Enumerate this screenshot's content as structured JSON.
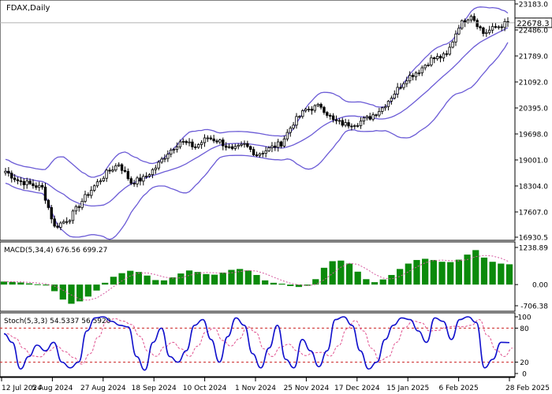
{
  "chart_data": [
    {
      "type": "candlestick",
      "panel": "price",
      "title": "FDAX,Daily",
      "current_value_label": "22678.3",
      "y_ticks": [
        "23183.0",
        "22486.0",
        "21789.0",
        "21092.0",
        "20395.0",
        "19698.0",
        "19001.0",
        "18304.0",
        "17607.0",
        "16930.5"
      ],
      "ylim": [
        16930.5,
        23183.0
      ],
      "overlay": "Bollinger Bands",
      "series_description": "daily OHLC candles Jul 2024 to Feb 2025; approximate close path",
      "close_path": [
        [
          "12 Jul 2024",
          18700
        ],
        [
          "19 Jul 2024",
          18450
        ],
        [
          "26 Jul 2024",
          18350
        ],
        [
          "1 Aug 2024",
          18250
        ],
        [
          "5 Aug 2024",
          17200
        ],
        [
          "8 Aug 2024",
          17450
        ],
        [
          "14 Aug 2024",
          17900
        ],
        [
          "20 Aug 2024",
          18300
        ],
        [
          "27 Aug 2024",
          18650
        ],
        [
          "3 Sep 2024",
          18900
        ],
        [
          "6 Sep 2024",
          18400
        ],
        [
          "10 Sep 2024",
          18500
        ],
        [
          "18 Sep 2024",
          18800
        ],
        [
          "24 Sep 2024",
          19200
        ],
        [
          "30 Sep 2024",
          19500
        ],
        [
          "10 Oct 2024",
          19350
        ],
        [
          "16 Oct 2024",
          19600
        ],
        [
          "24 Oct 2024",
          19500
        ],
        [
          "1 Nov 2024",
          19250
        ],
        [
          "8 Nov 2024",
          19400
        ],
        [
          "15 Nov 2024",
          19150
        ],
        [
          "22 Nov 2024",
          19300
        ],
        [
          "25 Nov 2024",
          19450
        ],
        [
          "3 Dec 2024",
          20000
        ],
        [
          "9 Dec 2024",
          20350
        ],
        [
          "12 Dec 2024",
          20450
        ],
        [
          "17 Dec 2024",
          20050
        ],
        [
          "20 Dec 2024",
          19950
        ],
        [
          "27 Dec 2024",
          20000
        ],
        [
          "3 Jan 2025",
          20150
        ],
        [
          "10 Jan 2025",
          20400
        ],
        [
          "15 Jan 2025",
          20800
        ],
        [
          "22 Jan 2025",
          21200
        ],
        [
          "28 Jan 2025",
          21400
        ],
        [
          "31 Jan 2025",
          21700
        ],
        [
          "6 Feb 2025",
          21800
        ],
        [
          "12 Feb 2025",
          22600
        ],
        [
          "17 Feb 2025",
          22900
        ],
        [
          "20 Feb 2025",
          22400
        ],
        [
          "25 Feb 2025",
          22550
        ],
        [
          "28 Feb 2025",
          22678.3
        ]
      ]
    },
    {
      "type": "bar",
      "panel": "macd",
      "title": "MACD(5,34,4) 676.56 699.27",
      "y_ticks": [
        "1238.89",
        "0.00",
        "-706.38"
      ],
      "ylim": [
        -706.38,
        1238.89
      ],
      "series_description": "MACD histogram (green bars) with dotted signal line; approximate values",
      "values": [
        100,
        90,
        70,
        40,
        10,
        -30,
        -220,
        -500,
        -640,
        -560,
        -400,
        -200,
        60,
        260,
        380,
        460,
        420,
        300,
        150,
        140,
        240,
        370,
        470,
        420,
        350,
        330,
        400,
        490,
        520,
        470,
        320,
        140,
        60,
        30,
        -50,
        -80,
        -40,
        180,
        560,
        780,
        800,
        700,
        430,
        180,
        80,
        170,
        320,
        520,
        700,
        820,
        860,
        820,
        760,
        750,
        830,
        1000,
        1150,
        900,
        760,
        700,
        676.56
      ]
    },
    {
      "type": "line",
      "panel": "stochastic",
      "title": "Stoch(5,3,3) 54.5337 56.5920",
      "y_ticks": [
        "100",
        "80",
        "20",
        "0"
      ],
      "ylim": [
        0,
        100
      ],
      "reference_lines": [
        80,
        20
      ],
      "series_description": "%K solid blue, %D dashed pink; approximate values",
      "values": [
        70,
        55,
        8,
        30,
        50,
        40,
        55,
        20,
        10,
        20,
        75,
        98,
        100,
        92,
        85,
        82,
        30,
        6,
        55,
        80,
        30,
        20,
        40,
        85,
        95,
        60,
        20,
        65,
        98,
        85,
        35,
        10,
        45,
        85,
        25,
        10,
        60,
        40,
        12,
        40,
        95,
        100,
        85,
        40,
        8,
        20,
        60,
        85,
        98,
        95,
        75,
        55,
        98,
        92,
        60,
        95,
        100,
        90,
        10,
        25,
        55,
        54.53
      ]
    }
  ],
  "x_axis": {
    "labels": [
      "12 Jul 2024",
      "5 Aug 2024",
      "27 Aug 2024",
      "18 Sep 2024",
      "10 Oct 2024",
      "1 Nov 2024",
      "25 Nov 2024",
      "17 Dec 2024",
      "15 Jan 2025",
      "6 Feb 2025",
      "28 Feb 2025"
    ]
  },
  "colors": {
    "candle": "#000000",
    "bollinger": "#6b5bd6",
    "macd_bar": "#0b8a0b",
    "signal": "#d45aa0",
    "stoch_k": "#1010cc",
    "stoch_d": "#e0508e",
    "level_line": "#cc2222",
    "axis": "#000000",
    "label_bg": "#ffffff",
    "current_price_line": "#b0b0b0"
  }
}
